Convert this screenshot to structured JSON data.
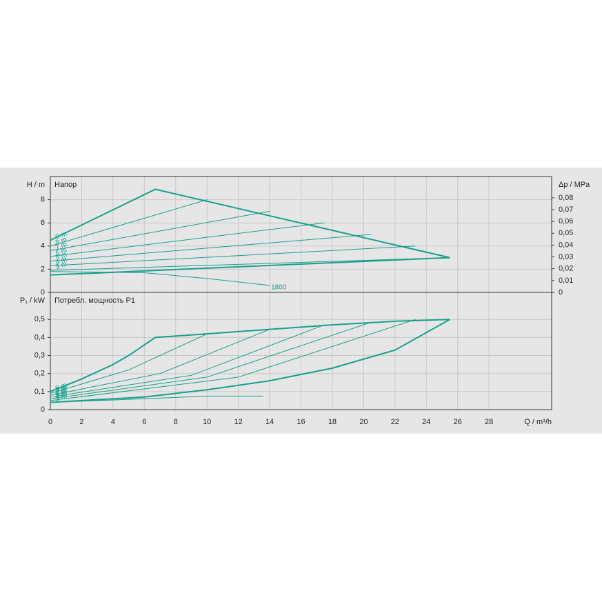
{
  "chart_data": [
    {
      "type": "line",
      "title": "Напор",
      "ylabel": "H / m",
      "y2label": "Δp / MPa",
      "xlim": [
        0,
        32
      ],
      "xticks": [
        0,
        2,
        4,
        6,
        8,
        10,
        12,
        14,
        16,
        18,
        20,
        22,
        24,
        26,
        28
      ],
      "ylim": [
        0,
        10
      ],
      "yticks": [
        0,
        2,
        4,
        6,
        8
      ],
      "y2lim": [
        0,
        0.098
      ],
      "y2ticks": [
        0,
        {
          "value": 0.01,
          "label": "0,01"
        },
        {
          "value": 0.02,
          "label": "0,02"
        },
        {
          "value": 0.03,
          "label": "0,03"
        },
        {
          "value": 0.04,
          "label": "0,04"
        },
        {
          "value": 0.05,
          "label": "0,05"
        },
        {
          "value": 0.06,
          "label": "0,06"
        },
        {
          "value": 0.07,
          "label": "0,07"
        },
        {
          "value": 0.08,
          "label": "0,08"
        }
      ],
      "grid": true,
      "color": "#17a08c",
      "series": [
        {
          "name": "9 m",
          "x": [
            0,
            6.7,
            25.5
          ],
          "values": [
            4.5,
            8.9,
            3
          ],
          "line_width": 2
        },
        {
          "name": "8 m",
          "x": [
            0,
            10
          ],
          "values": [
            4.0,
            8
          ],
          "line_width": 1
        },
        {
          "name": "7 m",
          "x": [
            0,
            14
          ],
          "values": [
            3.6,
            7
          ],
          "line_width": 1
        },
        {
          "name": "6 m",
          "x": [
            0,
            17.5
          ],
          "values": [
            3.1,
            6
          ],
          "line_width": 1
        },
        {
          "name": "5 m",
          "x": [
            0,
            20.5
          ],
          "values": [
            2.7,
            5
          ],
          "line_width": 1
        },
        {
          "name": "4 m",
          "x": [
            0,
            23.3
          ],
          "values": [
            2.3,
            4
          ],
          "line_width": 1
        },
        {
          "name": "3 m",
          "x": [
            0,
            25.5
          ],
          "values": [
            1.9,
            3
          ],
          "line_width": 1
        },
        {
          "x": [
            0,
            25.5
          ],
          "values": [
            1.5,
            3
          ],
          "line_width": 2
        },
        {
          "name": "1800",
          "x": [
            0,
            6,
            10,
            14
          ],
          "values": [
            1.8,
            1.7,
            1.2,
            0.6
          ],
          "line_width": 1
        }
      ]
    },
    {
      "type": "line",
      "title": "Потребл. мощность P1",
      "ylabel": "P₁ / kW",
      "xlabel": "Q / m³/h",
      "xlim": [
        0,
        32
      ],
      "xticks": [
        0,
        2,
        4,
        6,
        8,
        10,
        12,
        14,
        16,
        18,
        20,
        22,
        24,
        26,
        28
      ],
      "ylim": [
        0,
        0.65
      ],
      "yticks": [
        0,
        {
          "value": 0.1,
          "label": "0,1"
        },
        {
          "value": 0.2,
          "label": "0,2"
        },
        {
          "value": 0.3,
          "label": "0,3"
        },
        {
          "value": 0.4,
          "label": "0,4"
        },
        {
          "value": 0.5,
          "label": "0,5"
        }
      ],
      "grid": true,
      "color": "#17a08c",
      "series": [
        {
          "name": "9 m",
          "x": [
            0,
            2,
            4,
            5,
            6.7,
            10,
            14,
            18,
            22,
            25.5
          ],
          "values": [
            0.1,
            0.17,
            0.25,
            0.3,
            0.4,
            0.42,
            0.445,
            0.47,
            0.49,
            0.5
          ],
          "line_width": 2
        },
        {
          "name": "8 m",
          "x": [
            0,
            5,
            10
          ],
          "values": [
            0.09,
            0.22,
            0.42
          ],
          "line_width": 1
        },
        {
          "name": "7 m",
          "x": [
            0,
            7,
            14
          ],
          "values": [
            0.08,
            0.2,
            0.445
          ],
          "line_width": 1
        },
        {
          "name": "6 m",
          "x": [
            0,
            9,
            17.5
          ],
          "values": [
            0.07,
            0.19,
            0.47
          ],
          "line_width": 1
        },
        {
          "name": "5 m",
          "x": [
            0,
            10,
            20.5
          ],
          "values": [
            0.06,
            0.18,
            0.485
          ],
          "line_width": 1
        },
        {
          "name": "4 m",
          "x": [
            0,
            12,
            23.3
          ],
          "values": [
            0.05,
            0.18,
            0.5
          ],
          "line_width": 1
        },
        {
          "name": "3 m",
          "x": [
            0,
            6,
            10,
            14,
            18,
            22,
            25.5
          ],
          "values": [
            0.04,
            0.07,
            0.11,
            0.16,
            0.23,
            0.33,
            0.5
          ],
          "line_width": 2
        },
        {
          "x": [
            0,
            6,
            10,
            13.6
          ],
          "values": [
            0.04,
            0.06,
            0.075,
            0.075
          ],
          "line_width": 1
        }
      ]
    }
  ]
}
